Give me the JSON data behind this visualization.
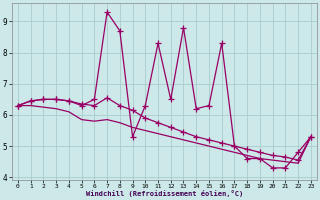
{
  "x": [
    0,
    1,
    2,
    3,
    4,
    5,
    6,
    7,
    8,
    9,
    10,
    11,
    12,
    13,
    14,
    15,
    16,
    17,
    18,
    19,
    20,
    21,
    22,
    23
  ],
  "y_jagged": [
    6.3,
    6.45,
    6.5,
    6.5,
    6.45,
    6.3,
    6.5,
    9.3,
    8.7,
    5.3,
    6.3,
    8.3,
    6.5,
    8.8,
    6.2,
    6.3,
    8.3,
    5.0,
    4.6,
    4.6,
    4.3,
    4.3,
    4.8,
    5.3
  ],
  "y_smooth1": [
    6.3,
    6.45,
    6.5,
    6.5,
    6.45,
    6.35,
    6.3,
    6.55,
    6.3,
    6.15,
    5.9,
    5.75,
    5.6,
    5.45,
    5.3,
    5.2,
    5.1,
    5.0,
    4.9,
    4.8,
    4.7,
    4.65,
    4.55,
    5.3
  ],
  "y_smooth2": [
    6.3,
    6.3,
    6.25,
    6.2,
    6.1,
    5.85,
    5.8,
    5.85,
    5.75,
    5.6,
    5.5,
    5.4,
    5.3,
    5.2,
    5.1,
    5.0,
    4.9,
    4.8,
    4.7,
    4.6,
    4.55,
    4.5,
    4.45,
    5.3
  ],
  "ylim": [
    3.9,
    9.6
  ],
  "xlim": [
    -0.5,
    23.5
  ],
  "yticks": [
    4,
    5,
    6,
    7,
    8,
    9
  ],
  "xticks": [
    0,
    1,
    2,
    3,
    4,
    5,
    6,
    7,
    8,
    9,
    10,
    11,
    12,
    13,
    14,
    15,
    16,
    17,
    18,
    19,
    20,
    21,
    22,
    23
  ],
  "xlabel": "Windchill (Refroidissement éolien,°C)",
  "line_color": "#990066",
  "bg_color": "#cce8e8",
  "grid_color": "#aacccc",
  "marker": "+",
  "marker_size": 4,
  "linewidth": 0.9
}
